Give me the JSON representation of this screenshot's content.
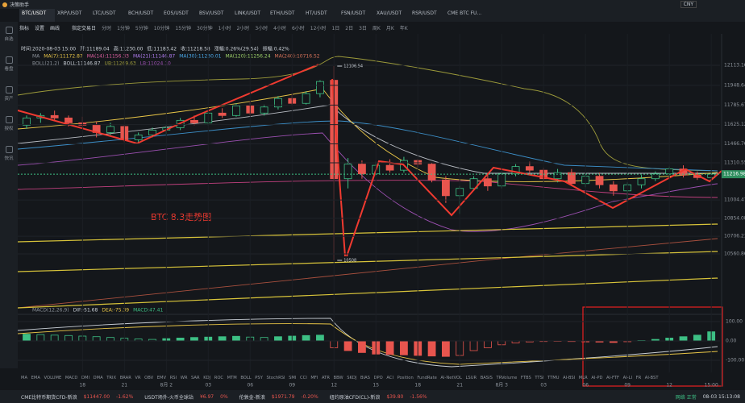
{
  "app": {
    "title": "决策助手",
    "currency": "CNY"
  },
  "tabs": [
    "BTC/USDT",
    "XRP/USDT",
    "LTC/USDT",
    "BCH/USDT",
    "EOS/USDT",
    "BSV/USDT",
    "LINK/USDT",
    "ETH/USDT",
    "HT/USDT",
    "FSN/USDT",
    "XAU/USDT",
    "RSR/USDT",
    "CME BTC FU..."
  ],
  "sidebar": [
    "自选",
    "看盘",
    "资产",
    "授权",
    "快讯"
  ],
  "toolbar": {
    "tools": [
      "指标",
      "设置",
      "画线"
    ],
    "range": "指定交易日",
    "periods": [
      "分时",
      "1分钟",
      "5分钟",
      "10分钟",
      "15分钟",
      "30分钟",
      "1小时",
      "2小时",
      "3小时",
      "4小时",
      "6小时",
      "12小时",
      "1日",
      "2日",
      "3日",
      "周K",
      "月K",
      "年K"
    ]
  },
  "info": [
    "时间:2020-08-03 15:00",
    "开:11189.04",
    "高:11230.00",
    "低:11183.42",
    "收:11218.58",
    "涨幅:0.26%(29.54)",
    "振幅:0.42%"
  ],
  "ma": {
    "label": "MA",
    "items": [
      {
        "text": "MA(7):11172.87",
        "color": "#e8c547"
      },
      {
        "text": "MA(14):11156.33",
        "color": "#e05fa0"
      },
      {
        "text": "MA(21):11146.87",
        "color": "#b07cf0"
      },
      {
        "text": "MA(30):11230.01",
        "color": "#4aa8e8"
      },
      {
        "text": "MA(120):11256.24",
        "color": "#9fd36a"
      },
      {
        "text": "MA(240):10716.52",
        "color": "#d9735a"
      }
    ]
  },
  "boll": {
    "label": "BOLL(21,2)",
    "items": [
      "BOLL:11146.87",
      "UB:11269.63",
      "LB:11024.10"
    ]
  },
  "price_axis": {
    "ylim": [
      10077,
      12372
    ],
    "ticks": [
      12113.16,
      11948.64,
      11785.67,
      11625.12,
      11466.76,
      11310.55,
      11004.47,
      10854.08,
      10706.21,
      10560.86
    ],
    "current": 11216.98
  },
  "candles": [
    [
      11620,
      11700,
      11590,
      11680
    ],
    [
      11680,
      11720,
      11640,
      11700
    ],
    [
      11700,
      11740,
      11660,
      11680
    ],
    [
      11680,
      11700,
      11610,
      11640
    ],
    [
      11640,
      11690,
      11600,
      11620
    ],
    [
      11620,
      11650,
      11520,
      11560
    ],
    [
      11560,
      11640,
      11540,
      11610
    ],
    [
      11610,
      11620,
      11480,
      11500
    ],
    [
      11500,
      11560,
      11470,
      11540
    ],
    [
      11540,
      11600,
      11520,
      11580
    ],
    [
      11580,
      11620,
      11550,
      11600
    ],
    [
      11600,
      11680,
      11580,
      11660
    ],
    [
      11660,
      11700,
      11620,
      11640
    ],
    [
      11640,
      11740,
      11620,
      11720
    ],
    [
      11720,
      11760,
      11680,
      11700
    ],
    [
      11700,
      11800,
      11690,
      11780
    ],
    [
      11780,
      11820,
      11700,
      11720
    ],
    [
      11720,
      11790,
      11700,
      11770
    ],
    [
      11770,
      11860,
      11750,
      11840
    ],
    [
      11840,
      11880,
      11780,
      11800
    ],
    [
      11800,
      11900,
      11790,
      11880
    ],
    [
      11880,
      11990,
      11850,
      11980
    ],
    [
      11990,
      12106.54,
      10508,
      11180
    ],
    [
      11180,
      11350,
      11100,
      11300
    ],
    [
      11300,
      11330,
      11180,
      11220
    ],
    [
      11220,
      11320,
      11200,
      11290
    ],
    [
      11290,
      11340,
      11230,
      11250
    ],
    [
      11250,
      11360,
      11230,
      11330
    ],
    [
      11330,
      11340,
      11270,
      11300
    ],
    [
      11300,
      11310,
      11150,
      11170
    ],
    [
      11170,
      11200,
      10980,
      11040
    ],
    [
      11040,
      11120,
      10890,
      11100
    ],
    [
      11100,
      11200,
      11080,
      11180
    ],
    [
      11180,
      11220,
      11080,
      11120
    ],
    [
      11120,
      11240,
      11100,
      11220
    ],
    [
      11220,
      11300,
      11200,
      11280
    ],
    [
      11280,
      11320,
      11230,
      11250
    ],
    [
      11250,
      11270,
      11160,
      11180
    ],
    [
      11180,
      11260,
      11150,
      11230
    ],
    [
      11230,
      11260,
      11120,
      11140
    ],
    [
      11140,
      11220,
      11110,
      11200
    ],
    [
      11200,
      11230,
      11100,
      11130
    ],
    [
      11130,
      11160,
      11040,
      11080
    ],
    [
      11080,
      11150,
      10990,
      11130
    ],
    [
      11130,
      11210,
      11100,
      11180
    ],
    [
      11180,
      11240,
      11160,
      11220
    ],
    [
      11220,
      11280,
      11200,
      11260
    ],
    [
      11260,
      11290,
      11190,
      11210
    ],
    [
      11210,
      11240,
      11170,
      11189.04
    ],
    [
      11189.04,
      11230,
      11183.42,
      11218.58
    ]
  ],
  "annotation": "BTC 8.3走势图",
  "macd": {
    "label": "MACD(12,26,9)",
    "items": [
      "DIF:-51.68",
      "DEA:-75.39",
      "MACD:47.41"
    ],
    "ylim": [
      -162.5,
      137.5
    ],
    "ticks": [
      {
        "value": 100,
        "label": "100.00"
      },
      {
        "value": 0,
        "label": "0.00"
      },
      {
        "value": -100,
        "label": "-100.00"
      }
    ],
    "values": [
      35,
      33,
      30,
      28,
      25,
      22,
      18,
      14,
      10,
      8,
      12,
      15,
      18,
      20,
      22,
      24,
      20,
      18,
      22,
      25,
      28,
      30,
      -35,
      -50,
      -60,
      -68,
      -70,
      -72,
      -75,
      -78,
      -80,
      -75,
      -50,
      -35,
      -20,
      -10,
      -5,
      -3,
      -2,
      -3,
      -5,
      -6,
      -8,
      -4,
      2,
      8,
      15,
      22,
      30,
      47.41
    ]
  },
  "time_labels": [
    "18",
    "21",
    "8月 2",
    "03",
    "06",
    "09",
    "12",
    "15",
    "18",
    "21",
    "8月 3",
    "03",
    "06",
    "09",
    "12",
    "15:00"
  ],
  "indicators": [
    "MA",
    "EMA",
    "VOLUME",
    "MACD",
    "DMI",
    "DMA",
    "TRIX",
    "BRAR",
    "VR",
    "OBV",
    "EMV",
    "RSI",
    "WR",
    "SAR",
    "KDJ",
    "ROC",
    "MTM",
    "BOLL",
    "PSY",
    "StochRSI",
    "SMI",
    "CCI",
    "MFI",
    "ATR",
    "BBW",
    "SKDJ",
    "BIAS",
    "DPO",
    "ACI",
    "Position",
    "FundRate",
    "AI-NetVOL",
    "LSUR",
    "BASIS",
    "TRVolume",
    "FTBS",
    "TTSI",
    "TTMU",
    "AI-BSI",
    "MLR",
    "AI-PD",
    "AI-FTF",
    "AI-LI",
    "FR",
    "AI-BST"
  ],
  "status": [
    {
      "name": "CME比特币期货CFD-新浪",
      "price": "$11447.00",
      "change": "-1.62%"
    },
    {
      "name": "USDT场外-火币全球站",
      "price": "¥6.97",
      "change": "0%"
    },
    {
      "name": "伦敦金-新浪",
      "price": "$1971.79",
      "change": "-0.20%"
    },
    {
      "name": "纽约原油CFD(CL)-新浪",
      "price": "$39.80",
      "change": "-1.56%"
    }
  ],
  "network": "网络 正常",
  "clock": "08-03 15:13:08"
}
